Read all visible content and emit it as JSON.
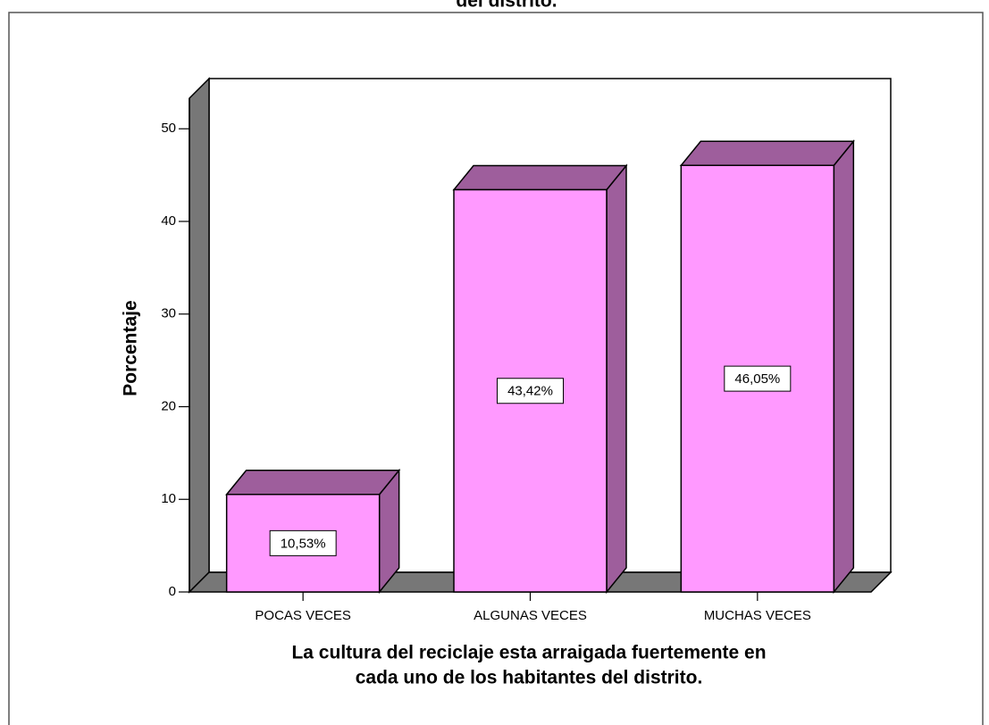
{
  "chart_data": {
    "type": "bar3d",
    "title": "del distrito.",
    "ylabel": "Porcentaje",
    "xlabel": [
      "La cultura del reciclaje esta arraigada fuertemente en",
      "cada uno de los habitantes del distrito."
    ],
    "categories": [
      "POCAS VECES",
      "ALGUNAS VECES",
      "MUCHAS VECES"
    ],
    "values": [
      10.53,
      43.42,
      46.05
    ],
    "value_labels": [
      "10,53%",
      "43,42%",
      "46,05%"
    ],
    "color": "#ff99ff",
    "side_color": "#9e5e9c",
    "ylim": [
      0,
      53.3
    ],
    "yticks": [
      0,
      10,
      20,
      30,
      40,
      50
    ]
  }
}
